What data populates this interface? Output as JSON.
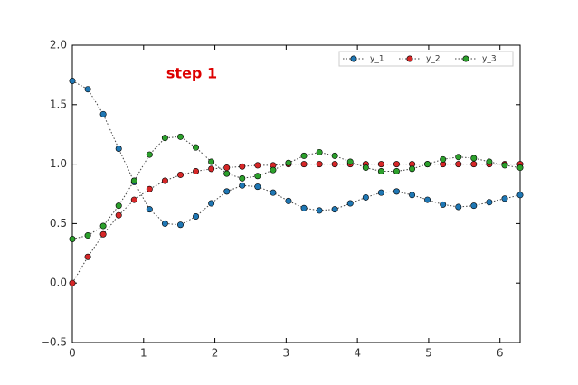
{
  "chart_data": {
    "type": "line",
    "annotation": "step 1",
    "x": [
      0,
      0.217,
      0.433,
      0.65,
      0.867,
      1.083,
      1.3,
      1.517,
      1.733,
      1.95,
      2.167,
      2.383,
      2.6,
      2.817,
      3.033,
      3.25,
      3.467,
      3.683,
      3.9,
      4.117,
      4.333,
      4.55,
      4.767,
      4.983,
      5.2,
      5.417,
      5.633,
      5.85,
      6.067,
      6.283
    ],
    "series": [
      {
        "name": "y_1",
        "color": "#1f77b4",
        "values": [
          1.7,
          1.63,
          1.42,
          1.13,
          0.85,
          0.62,
          0.5,
          0.49,
          0.56,
          0.67,
          0.77,
          0.82,
          0.81,
          0.76,
          0.69,
          0.63,
          0.61,
          0.62,
          0.67,
          0.72,
          0.76,
          0.77,
          0.74,
          0.7,
          0.66,
          0.64,
          0.65,
          0.68,
          0.71,
          0.74
        ]
      },
      {
        "name": "y_2",
        "color": "#d62728",
        "values": [
          0,
          0.22,
          0.41,
          0.57,
          0.7,
          0.79,
          0.86,
          0.91,
          0.94,
          0.96,
          0.97,
          0.98,
          0.99,
          0.99,
          1.0,
          1.0,
          1.0,
          1.0,
          1.0,
          1.0,
          1.0,
          1.0,
          1.0,
          1.0,
          1.0,
          1.0,
          1.0,
          1.0,
          1.0,
          1.0
        ]
      },
      {
        "name": "y_3",
        "color": "#2ca02c",
        "values": [
          0.37,
          0.4,
          0.48,
          0.65,
          0.86,
          1.08,
          1.22,
          1.23,
          1.14,
          1.02,
          0.92,
          0.88,
          0.9,
          0.95,
          1.01,
          1.07,
          1.1,
          1.07,
          1.02,
          0.97,
          0.94,
          0.94,
          0.96,
          1.0,
          1.04,
          1.06,
          1.05,
          1.02,
          0.99,
          0.97
        ]
      }
    ],
    "xlim": [
      0,
      6.283
    ],
    "ylim": [
      -0.5,
      2.0
    ],
    "xticks": [
      0,
      1,
      2,
      3,
      4,
      5,
      6
    ],
    "yticks": [
      {
        "value": -0.5,
        "label": "−0.5"
      },
      {
        "value": 0,
        "label": "0.0"
      },
      0.5,
      {
        "value": 1,
        "label": "1.0"
      },
      1.5,
      {
        "value": 2,
        "label": "2.0"
      }
    ],
    "grid": false,
    "legend": "upper right"
  }
}
